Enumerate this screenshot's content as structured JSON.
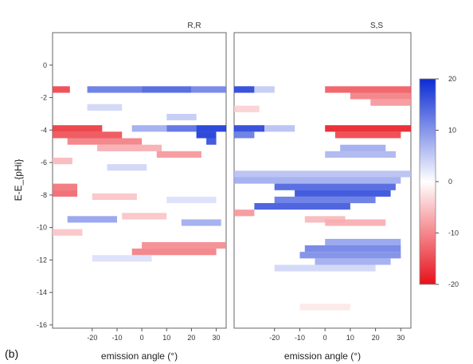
{
  "panel_label": "(b)",
  "chart_data": [
    {
      "type": "heatmap",
      "title": "R,R",
      "xlabel": "emission angle (°)",
      "ylabel": "E-E_{pHi}",
      "xlim": [
        -36,
        34
      ],
      "ylim": [
        -16.2,
        2
      ],
      "xticks": [
        -20,
        -10,
        0,
        10,
        20,
        30
      ],
      "yticks": [
        0,
        -2,
        -4,
        -6,
        -8,
        -10,
        -12,
        -14,
        -16
      ],
      "band_height": 0.4,
      "bands": [
        {
          "y": -1.5,
          "x0": -36,
          "x1": -29,
          "v": -16
        },
        {
          "y": -1.5,
          "x0": -22,
          "x1": 0,
          "v": 13
        },
        {
          "y": -1.5,
          "x0": 0,
          "x1": 20,
          "v": 15
        },
        {
          "y": -1.5,
          "x0": 20,
          "x1": 34,
          "v": 12
        },
        {
          "y": -2.6,
          "x0": -22,
          "x1": -8,
          "v": 4
        },
        {
          "y": -3.2,
          "x0": 10,
          "x1": 22,
          "v": 5
        },
        {
          "y": -3.9,
          "x0": -36,
          "x1": -16,
          "v": -17
        },
        {
          "y": -3.9,
          "x0": -4,
          "x1": 10,
          "v": 8
        },
        {
          "y": -3.9,
          "x0": 10,
          "x1": 22,
          "v": 14
        },
        {
          "y": -3.9,
          "x0": 22,
          "x1": 34,
          "v": 19
        },
        {
          "y": -4.3,
          "x0": -36,
          "x1": -8,
          "v": -15
        },
        {
          "y": -4.3,
          "x0": 22,
          "x1": 30,
          "v": 19
        },
        {
          "y": -4.7,
          "x0": -30,
          "x1": 0,
          "v": -11
        },
        {
          "y": -4.7,
          "x0": 26,
          "x1": 30,
          "v": 17
        },
        {
          "y": -5.1,
          "x0": -18,
          "x1": 8,
          "v": -7
        },
        {
          "y": -5.5,
          "x0": 6,
          "x1": 24,
          "v": -9
        },
        {
          "y": -5.9,
          "x0": -36,
          "x1": -28,
          "v": -6
        },
        {
          "y": -6.3,
          "x0": -14,
          "x1": 2,
          "v": 4
        },
        {
          "y": -7.5,
          "x0": -36,
          "x1": -26,
          "v": -12
        },
        {
          "y": -7.9,
          "x0": -36,
          "x1": -26,
          "v": -13
        },
        {
          "y": -8.1,
          "x0": -20,
          "x1": -2,
          "v": -5
        },
        {
          "y": -8.3,
          "x0": 10,
          "x1": 30,
          "v": 3
        },
        {
          "y": -9.3,
          "x0": -8,
          "x1": 10,
          "v": -5
        },
        {
          "y": -9.5,
          "x0": -30,
          "x1": -10,
          "v": 9
        },
        {
          "y": -9.7,
          "x0": 16,
          "x1": 32,
          "v": 8
        },
        {
          "y": -10.3,
          "x0": -36,
          "x1": -24,
          "v": -5
        },
        {
          "y": -11.1,
          "x0": 0,
          "x1": 34,
          "v": -10
        },
        {
          "y": -11.5,
          "x0": -4,
          "x1": 30,
          "v": -11
        },
        {
          "y": -11.9,
          "x0": -20,
          "x1": 4,
          "v": 3
        }
      ]
    },
    {
      "type": "heatmap",
      "title": "S,S",
      "xlabel": "emission angle (°)",
      "ylabel": "",
      "xlim": [
        -36,
        34
      ],
      "ylim": [
        -16.2,
        2
      ],
      "xticks": [
        -20,
        -10,
        0,
        10,
        20,
        30
      ],
      "yticks": [],
      "band_height": 0.4,
      "bands": [
        {
          "y": -1.5,
          "x0": -36,
          "x1": -28,
          "v": 18
        },
        {
          "y": -1.5,
          "x0": -28,
          "x1": -20,
          "v": 5
        },
        {
          "y": -1.5,
          "x0": 0,
          "x1": 34,
          "v": -14
        },
        {
          "y": -1.9,
          "x0": 10,
          "x1": 34,
          "v": -11
        },
        {
          "y": -2.3,
          "x0": 18,
          "x1": 34,
          "v": -9
        },
        {
          "y": -2.7,
          "x0": -36,
          "x1": -26,
          "v": -4
        },
        {
          "y": -3.9,
          "x0": -36,
          "x1": -24,
          "v": 18
        },
        {
          "y": -3.9,
          "x0": -24,
          "x1": -12,
          "v": 6
        },
        {
          "y": -3.9,
          "x0": 0,
          "x1": 34,
          "v": -19
        },
        {
          "y": -4.3,
          "x0": -36,
          "x1": -28,
          "v": 13
        },
        {
          "y": -4.3,
          "x0": 4,
          "x1": 30,
          "v": -16
        },
        {
          "y": -5.1,
          "x0": 6,
          "x1": 24,
          "v": 8
        },
        {
          "y": -5.5,
          "x0": 0,
          "x1": 28,
          "v": 7
        },
        {
          "y": -6.7,
          "x0": -36,
          "x1": 34,
          "v": 6
        },
        {
          "y": -7.1,
          "x0": -36,
          "x1": 30,
          "v": 8
        },
        {
          "y": -7.5,
          "x0": -20,
          "x1": 28,
          "v": 15
        },
        {
          "y": -7.9,
          "x0": -12,
          "x1": 26,
          "v": 17
        },
        {
          "y": -8.3,
          "x0": -20,
          "x1": 20,
          "v": 13
        },
        {
          "y": -8.7,
          "x0": -28,
          "x1": 10,
          "v": 16
        },
        {
          "y": -9.1,
          "x0": -36,
          "x1": -28,
          "v": -9
        },
        {
          "y": -9.5,
          "x0": -8,
          "x1": 8,
          "v": -6
        },
        {
          "y": -9.7,
          "x0": 0,
          "x1": 24,
          "v": -7
        },
        {
          "y": -10.9,
          "x0": 0,
          "x1": 30,
          "v": 9
        },
        {
          "y": -11.3,
          "x0": -8,
          "x1": 30,
          "v": 12
        },
        {
          "y": -11.7,
          "x0": -10,
          "x1": 30,
          "v": 11
        },
        {
          "y": -12.1,
          "x0": -4,
          "x1": 26,
          "v": 8
        },
        {
          "y": -12.5,
          "x0": -20,
          "x1": 20,
          "v": 4
        },
        {
          "y": -14.9,
          "x0": -10,
          "x1": 10,
          "v": -2
        }
      ]
    }
  ],
  "colorbar": {
    "range": [
      -20,
      20
    ],
    "ticks": [
      20,
      10,
      0,
      -10,
      -20
    ],
    "high_color": "#0b2bd4",
    "mid_color": "#ffffff",
    "low_color": "#e8101a"
  }
}
